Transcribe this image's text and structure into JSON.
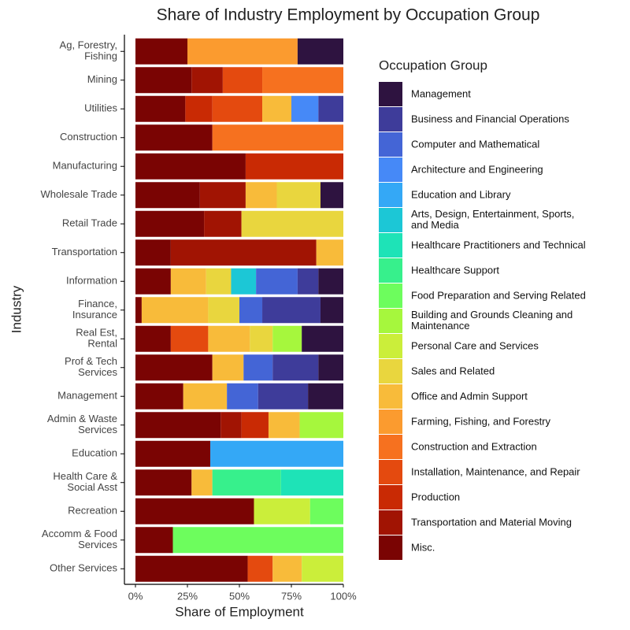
{
  "chart_data": {
    "type": "stacked-bar-horizontal",
    "title": "Share of Industry Employment by Occupation Group",
    "x_label": "Share of Employment",
    "y_label": "Industry",
    "legend_title": "Occupation Group",
    "legend_position": "right",
    "xlim": [
      0,
      100
    ],
    "xticks": [
      {
        "value": 0,
        "label": "0%"
      },
      {
        "value": 25,
        "label": "25%"
      },
      {
        "value": 50,
        "label": "50%"
      },
      {
        "value": 75,
        "label": "75%"
      },
      {
        "value": 100,
        "label": "100%"
      }
    ],
    "categories": [
      "Ag, Forestry,\nFishing",
      "Mining",
      "Utilities",
      "Construction",
      "Manufacturing",
      "Wholesale Trade",
      "Retail Trade",
      "Transportation",
      "Information",
      "Finance,\nInsurance",
      "Real Est,\nRental",
      "Prof & Tech\nServices",
      "Management",
      "Admin & Waste\nServices",
      "Education",
      "Health Care &\nSocial Asst",
      "Recreation",
      "Accomm & Food\nServices",
      "Other Services"
    ],
    "series": [
      {
        "name": "Management",
        "color": "#2e1340",
        "values": [
          22,
          0,
          0,
          0,
          0,
          11,
          0,
          0,
          12,
          11,
          20,
          12,
          17,
          0,
          0,
          0,
          0,
          0,
          0
        ]
      },
      {
        "name": "Business and Financial Operations",
        "color": "#3e3c9a",
        "values": [
          0,
          0,
          12,
          0,
          0,
          0,
          0,
          0,
          10,
          28,
          0,
          22,
          24,
          0,
          0,
          0,
          0,
          0,
          0
        ]
      },
      {
        "name": "Computer and Mathematical",
        "color": "#4465d6",
        "values": [
          0,
          0,
          0,
          0,
          0,
          0,
          0,
          0,
          20,
          11,
          0,
          14,
          15,
          0,
          0,
          0,
          0,
          0,
          0
        ]
      },
      {
        "name": "Architecture and Engineering",
        "color": "#4689f7",
        "values": [
          0,
          0,
          13,
          0,
          0,
          0,
          0,
          0,
          0,
          0,
          0,
          0,
          0,
          0,
          0,
          0,
          0,
          0,
          0
        ]
      },
      {
        "name": "Education and Library",
        "color": "#34a8f6",
        "values": [
          0,
          0,
          0,
          0,
          0,
          0,
          0,
          0,
          0,
          0,
          0,
          0,
          0,
          0,
          64,
          0,
          0,
          0,
          0
        ]
      },
      {
        "name": "Arts, Design, Entertainment, Sports,\nand Media",
        "color": "#1cc7d6",
        "values": [
          0,
          0,
          0,
          0,
          0,
          0,
          0,
          0,
          12,
          0,
          0,
          0,
          0,
          0,
          0,
          0,
          0,
          0,
          0
        ]
      },
      {
        "name": "Healthcare Practitioners and Technical",
        "color": "#1ee3b7",
        "values": [
          0,
          0,
          0,
          0,
          0,
          0,
          0,
          0,
          0,
          0,
          0,
          0,
          0,
          0,
          0,
          30,
          0,
          0,
          0
        ]
      },
      {
        "name": "Healthcare Support",
        "color": "#37f08c",
        "values": [
          0,
          0,
          0,
          0,
          0,
          0,
          0,
          0,
          0,
          0,
          0,
          0,
          0,
          0,
          0,
          33,
          0,
          0,
          0
        ]
      },
      {
        "name": "Food Preparation and Serving Related",
        "color": "#6dfd5d",
        "values": [
          0,
          0,
          0,
          0,
          0,
          0,
          0,
          0,
          0,
          0,
          0,
          0,
          0,
          0,
          0,
          0,
          16,
          82,
          0
        ]
      },
      {
        "name": "Building and Grounds Cleaning and\nMaintenance",
        "color": "#a6f73d",
        "values": [
          0,
          0,
          0,
          0,
          0,
          0,
          0,
          0,
          0,
          0,
          14,
          0,
          0,
          21,
          0,
          0,
          0,
          0,
          0
        ]
      },
      {
        "name": "Personal Care and Services",
        "color": "#cbee3a",
        "values": [
          0,
          0,
          0,
          0,
          0,
          0,
          0,
          0,
          0,
          0,
          0,
          0,
          0,
          0,
          0,
          0,
          27,
          0,
          20
        ]
      },
      {
        "name": "Sales and Related",
        "color": "#e9d63e",
        "values": [
          0,
          0,
          0,
          0,
          0,
          21,
          49,
          0,
          12,
          15,
          11,
          0,
          0,
          0,
          0,
          0,
          0,
          0,
          0
        ]
      },
      {
        "name": "Office and Admin Support",
        "color": "#f8bb3a",
        "values": [
          0,
          0,
          14,
          0,
          0,
          15,
          0,
          13,
          17,
          32,
          20,
          15,
          21,
          15,
          0,
          10,
          0,
          0,
          14
        ]
      },
      {
        "name": "Farming, Fishing, and Forestry",
        "color": "#fb9b2f",
        "values": [
          53,
          0,
          0,
          0,
          0,
          0,
          0,
          0,
          0,
          0,
          0,
          0,
          0,
          0,
          0,
          0,
          0,
          0,
          0
        ]
      },
      {
        "name": "Construction and Extraction",
        "color": "#f6711f",
        "values": [
          0,
          39,
          0,
          63,
          0,
          0,
          0,
          0,
          0,
          0,
          0,
          0,
          0,
          0,
          0,
          0,
          0,
          0,
          0
        ]
      },
      {
        "name": "Installation, Maintenance, and Repair",
        "color": "#e44a0f",
        "values": [
          0,
          19,
          24,
          0,
          0,
          0,
          0,
          0,
          0,
          0,
          18,
          0,
          0,
          0,
          0,
          0,
          0,
          0,
          12
        ]
      },
      {
        "name": "Production",
        "color": "#c92a04",
        "values": [
          0,
          0,
          13,
          0,
          47,
          0,
          0,
          0,
          0,
          0,
          0,
          0,
          0,
          13,
          0,
          0,
          0,
          0,
          0
        ]
      },
      {
        "name": "Transportation and Material Moving",
        "color": "#a11403",
        "values": [
          0,
          15,
          0,
          0,
          0,
          22,
          18,
          70,
          0,
          0,
          0,
          0,
          0,
          10,
          0,
          0,
          0,
          0,
          0
        ]
      },
      {
        "name": "Misc.",
        "color": "#7a0403",
        "values": [
          25,
          27,
          24,
          37,
          53,
          31,
          33,
          17,
          17,
          3,
          17,
          37,
          23,
          41,
          36,
          27,
          57,
          18,
          54
        ]
      }
    ]
  }
}
